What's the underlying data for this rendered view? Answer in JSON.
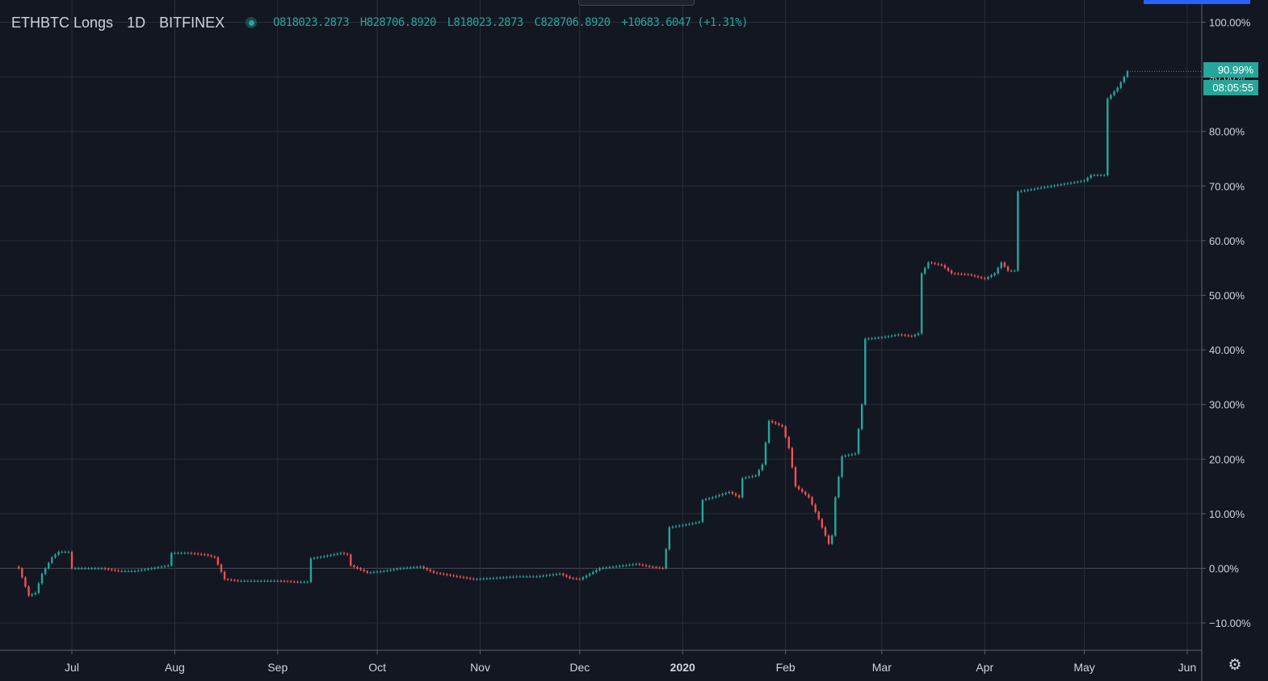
{
  "header": {
    "symbol": "ETHBTC Longs",
    "interval": "1D",
    "exchange": "BITFINEX",
    "ohlc": {
      "open": "O818023.2873",
      "high": "H828706.8920",
      "low": "L818023.2873",
      "close": "C828706.8920",
      "change": "+10683.6047 (+1.31%)"
    }
  },
  "price_tag": {
    "value": "90.99%",
    "countdown": "08:05:55"
  },
  "icons": {
    "status": "status-dot-icon",
    "settings": "gear-icon"
  },
  "colors": {
    "background": "#131722",
    "up": "#26a69a",
    "down": "#ef5350",
    "grid": "#2a2e39",
    "text": "#d1d4dc"
  },
  "chart_data": {
    "type": "candlestick",
    "title": "",
    "xlabel": "",
    "ylabel": "",
    "ylim": [
      -15,
      100
    ],
    "grid": true,
    "x_ticks": [
      "Jul",
      "Aug",
      "Sep",
      "Oct",
      "Nov",
      "Dec",
      "2020",
      "Feb",
      "Mar",
      "Apr",
      "May",
      "Jun"
    ],
    "y_ticks": [
      "100.00%",
      "90.00%",
      "80.00%",
      "70.00%",
      "60.00%",
      "50.00%",
      "40.00%",
      "30.00%",
      "20.00%",
      "10.00%",
      "0.00%",
      "−10.00%"
    ],
    "series": [
      {
        "path": [
          [
            "2019-06-15",
            0
          ],
          [
            "2019-06-18",
            -5
          ],
          [
            "2019-06-20",
            -4.5
          ],
          [
            "2019-06-22",
            -1
          ],
          [
            "2019-06-25",
            2
          ],
          [
            "2019-06-27",
            3
          ],
          [
            "2019-06-30",
            3
          ],
          [
            "2019-07-01",
            0
          ],
          [
            "2019-07-05",
            0
          ],
          [
            "2019-07-10",
            0
          ],
          [
            "2019-07-15",
            -0.5
          ],
          [
            "2019-07-20",
            -0.5
          ],
          [
            "2019-07-25",
            0
          ],
          [
            "2019-07-30",
            0.5
          ],
          [
            "2019-07-31",
            2.8
          ],
          [
            "2019-08-05",
            2.8
          ],
          [
            "2019-08-10",
            2.5
          ],
          [
            "2019-08-13",
            2
          ],
          [
            "2019-08-16",
            -2
          ],
          [
            "2019-08-20",
            -2.3
          ],
          [
            "2019-08-26",
            -2.3
          ],
          [
            "2019-09-01",
            -2.3
          ],
          [
            "2019-09-07",
            -2.5
          ],
          [
            "2019-09-10",
            -2.5
          ],
          [
            "2019-09-11",
            1.8
          ],
          [
            "2019-09-15",
            2.2
          ],
          [
            "2019-09-20",
            2.8
          ],
          [
            "2019-09-22",
            2.5
          ],
          [
            "2019-09-23",
            0.5
          ],
          [
            "2019-09-28",
            -0.8
          ],
          [
            "2019-10-03",
            -0.5
          ],
          [
            "2019-10-08",
            0
          ],
          [
            "2019-10-14",
            0.3
          ],
          [
            "2019-10-18",
            -0.8
          ],
          [
            "2019-10-25",
            -1.5
          ],
          [
            "2019-10-30",
            -2
          ],
          [
            "2019-11-05",
            -1.8
          ],
          [
            "2019-11-12",
            -1.5
          ],
          [
            "2019-11-18",
            -1.5
          ],
          [
            "2019-11-25",
            -1
          ],
          [
            "2019-11-28",
            -1.8
          ],
          [
            "2019-12-01",
            -2
          ],
          [
            "2019-12-04",
            -1
          ],
          [
            "2019-12-07",
            0
          ],
          [
            "2019-12-14",
            0.5
          ],
          [
            "2019-12-18",
            0.8
          ],
          [
            "2019-12-22",
            0.3
          ],
          [
            "2019-12-26",
            0
          ],
          [
            "2019-12-27",
            3.5
          ],
          [
            "2019-12-28",
            7.5
          ],
          [
            "2020-01-02",
            8
          ],
          [
            "2020-01-06",
            8.5
          ],
          [
            "2020-01-07",
            12.5
          ],
          [
            "2020-01-10",
            13
          ],
          [
            "2020-01-15",
            14
          ],
          [
            "2020-01-18",
            13
          ],
          [
            "2020-01-19",
            16.5
          ],
          [
            "2020-01-23",
            17
          ],
          [
            "2020-01-25",
            19
          ],
          [
            "2020-01-26",
            23
          ],
          [
            "2020-01-27",
            27
          ],
          [
            "2020-01-29",
            26.5
          ],
          [
            "2020-01-31",
            26
          ],
          [
            "2020-02-02",
            22
          ],
          [
            "2020-02-04",
            15
          ],
          [
            "2020-02-08",
            13
          ],
          [
            "2020-02-11",
            9
          ],
          [
            "2020-02-13",
            6
          ],
          [
            "2020-02-14",
            4.5
          ],
          [
            "2020-02-15",
            6
          ],
          [
            "2020-02-16",
            13
          ],
          [
            "2020-02-18",
            20.5
          ],
          [
            "2020-02-22",
            21
          ],
          [
            "2020-02-24",
            30
          ],
          [
            "2020-02-25",
            42
          ],
          [
            "2020-03-01",
            42.3
          ],
          [
            "2020-03-06",
            42.8
          ],
          [
            "2020-03-10",
            42.5
          ],
          [
            "2020-03-12",
            43
          ],
          [
            "2020-03-13",
            54
          ],
          [
            "2020-03-15",
            56
          ],
          [
            "2020-03-19",
            55.5
          ],
          [
            "2020-03-22",
            54
          ],
          [
            "2020-03-27",
            53.8
          ],
          [
            "2020-04-01",
            53
          ],
          [
            "2020-04-04",
            54
          ],
          [
            "2020-04-06",
            56
          ],
          [
            "2020-04-08",
            54.5
          ],
          [
            "2020-04-10",
            54.5
          ],
          [
            "2020-04-11",
            69
          ],
          [
            "2020-04-16",
            69.5
          ],
          [
            "2020-04-21",
            70
          ],
          [
            "2020-04-26",
            70.5
          ],
          [
            "2020-05-01",
            71
          ],
          [
            "2020-05-03",
            72
          ],
          [
            "2020-05-07",
            72
          ],
          [
            "2020-05-08",
            86
          ],
          [
            "2020-05-11",
            88
          ],
          [
            "2020-05-14",
            91
          ]
        ]
      }
    ]
  }
}
